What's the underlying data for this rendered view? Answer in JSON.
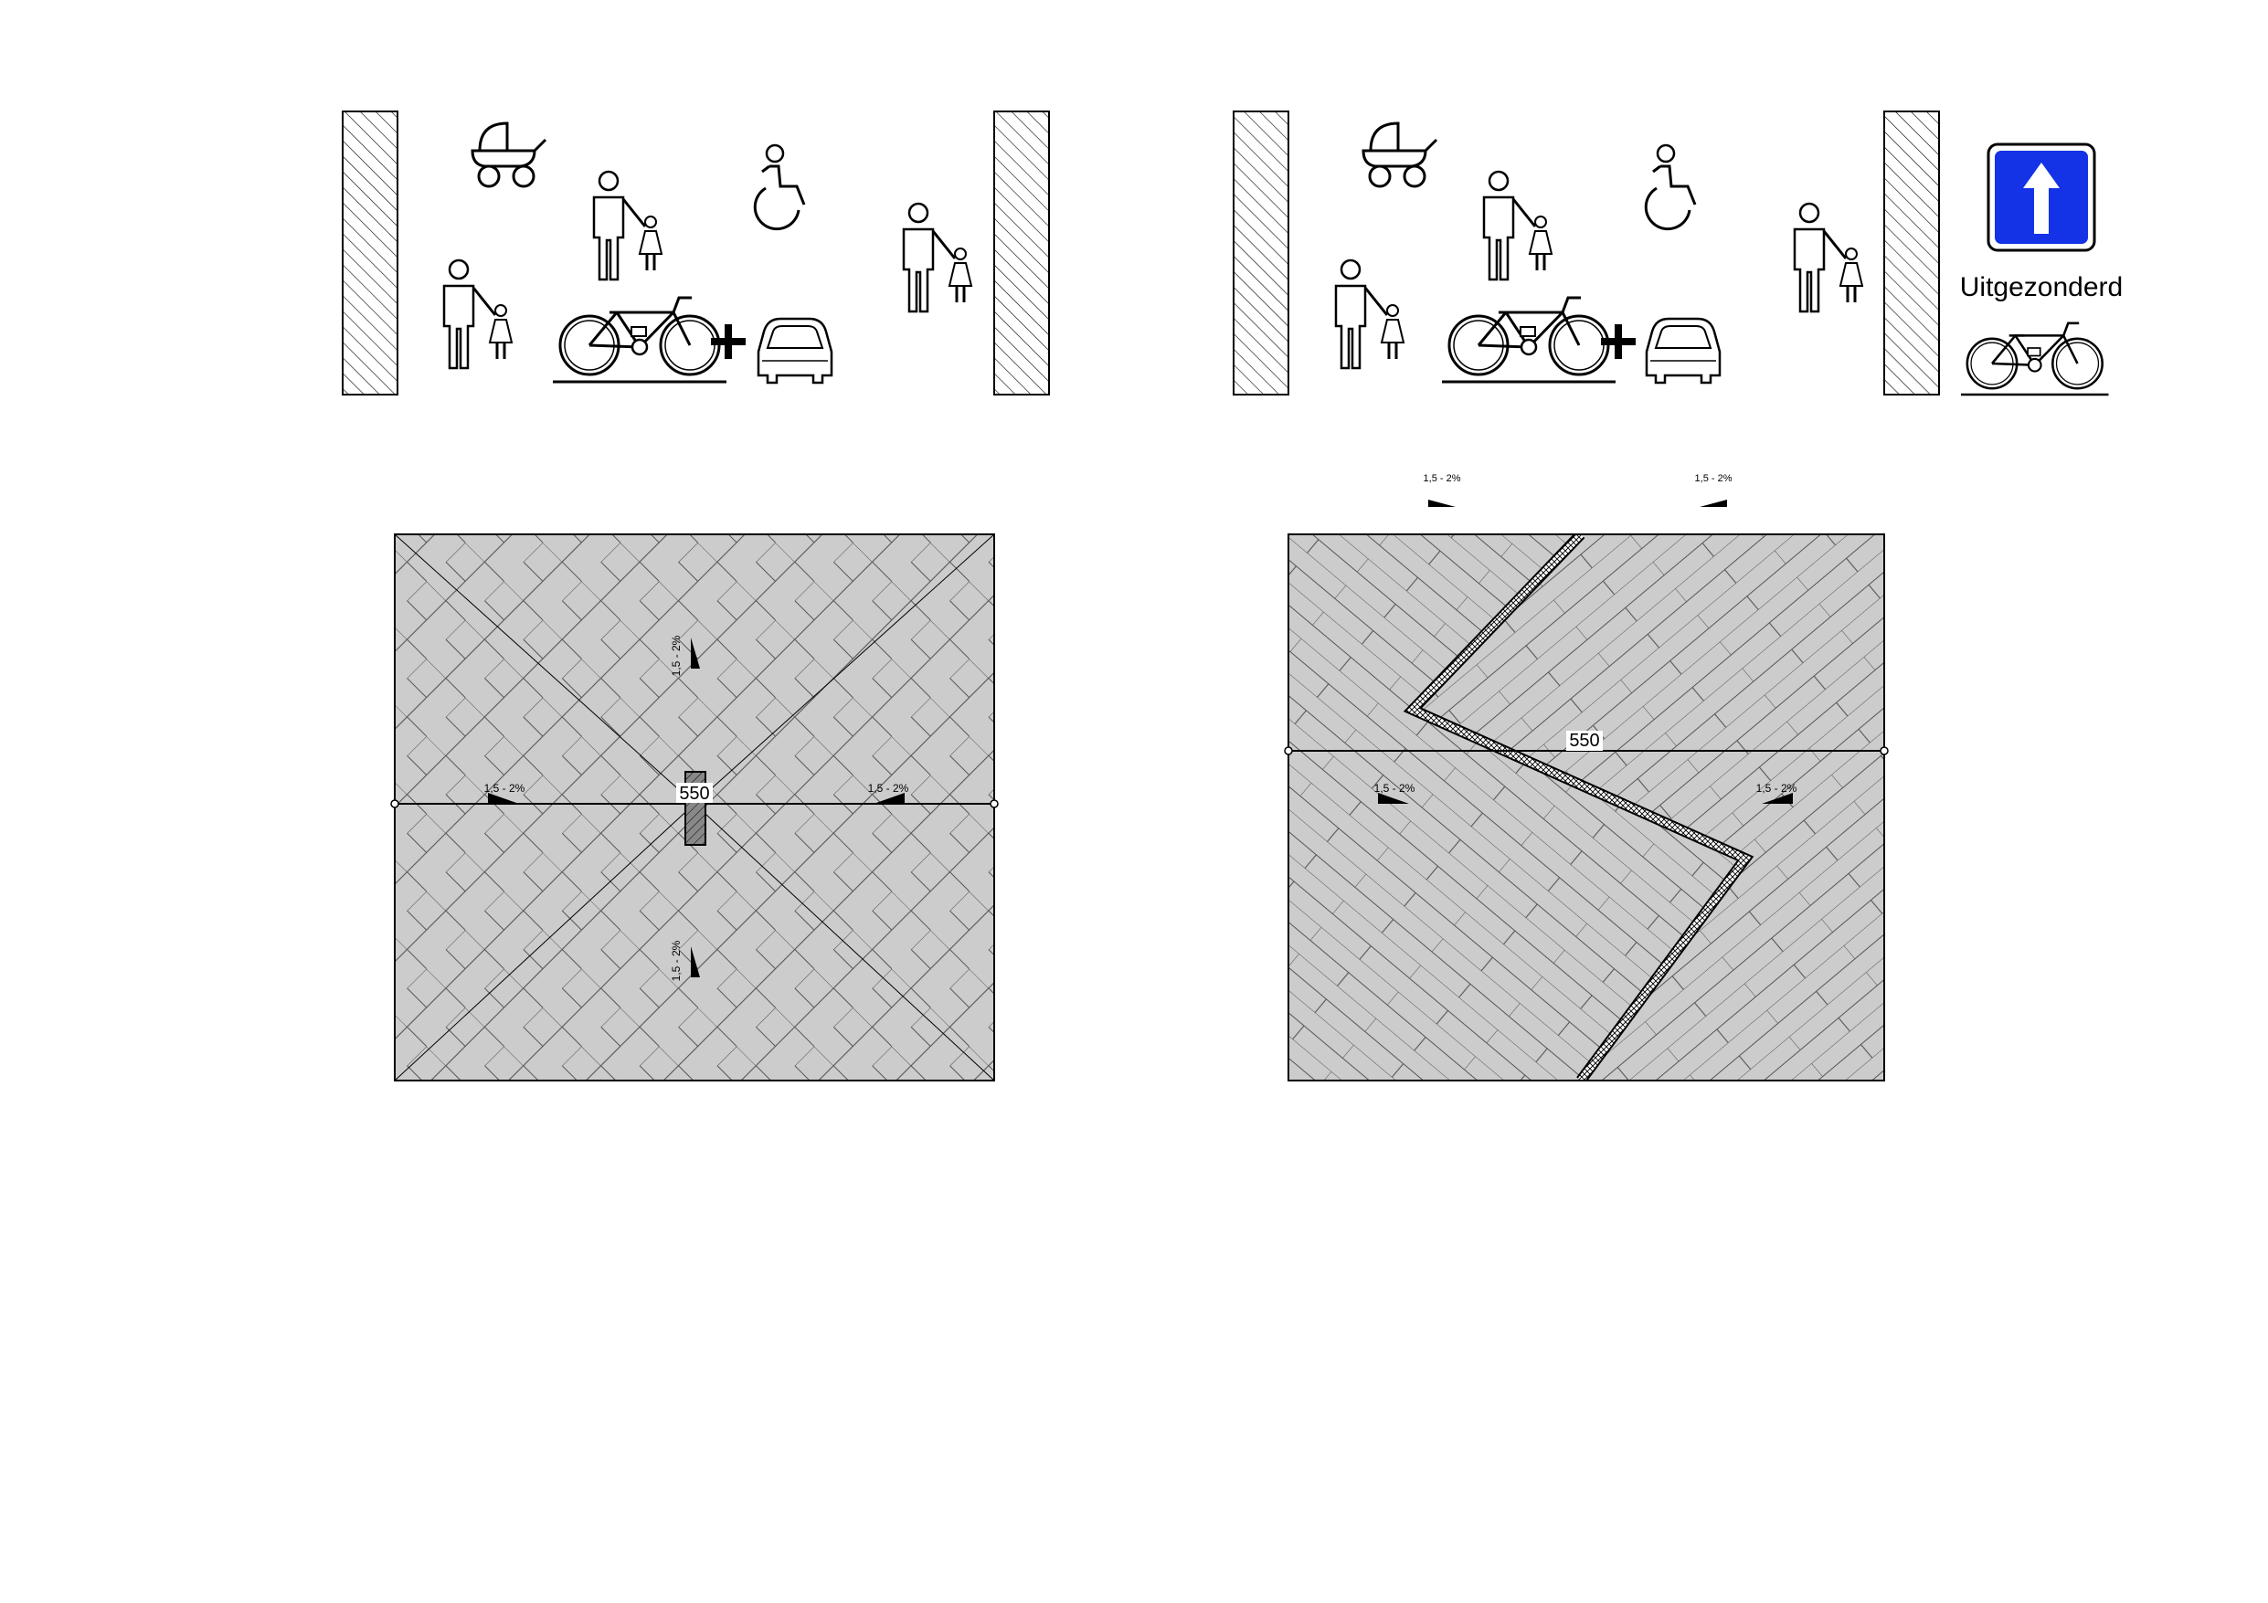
{
  "left_panel": {
    "width_dimension": "550",
    "slopes": {
      "left": "1,5 - 2%",
      "right": "1,5 - 2%",
      "top": "1,5 - 2%",
      "bottom": "1,5 - 2%"
    },
    "icons": [
      "pram-icon",
      "pedestrian-with-child-icon",
      "wheelchair-icon",
      "bicycle-icon",
      "plus-icon",
      "car-icon"
    ]
  },
  "right_panel": {
    "width_dimension": "550",
    "slopes": {
      "top_left": "1,5 - 2%",
      "top_right": "1,5 - 2%",
      "left": "1,5 - 2%",
      "right": "1,5 - 2%"
    },
    "icons": [
      "pram-icon",
      "pedestrian-with-child-icon",
      "wheelchair-icon",
      "bicycle-icon",
      "plus-icon",
      "car-icon"
    ]
  },
  "traffic_sign": {
    "icon": "one-way-arrow-icon",
    "sign_color": "#1432e6",
    "exception_label": "Uitgezonderd",
    "exception_icon": "bicycle-icon"
  },
  "colors": {
    "paving": "#cccccc",
    "line": "#000000",
    "wall_hatch": "#000000"
  }
}
